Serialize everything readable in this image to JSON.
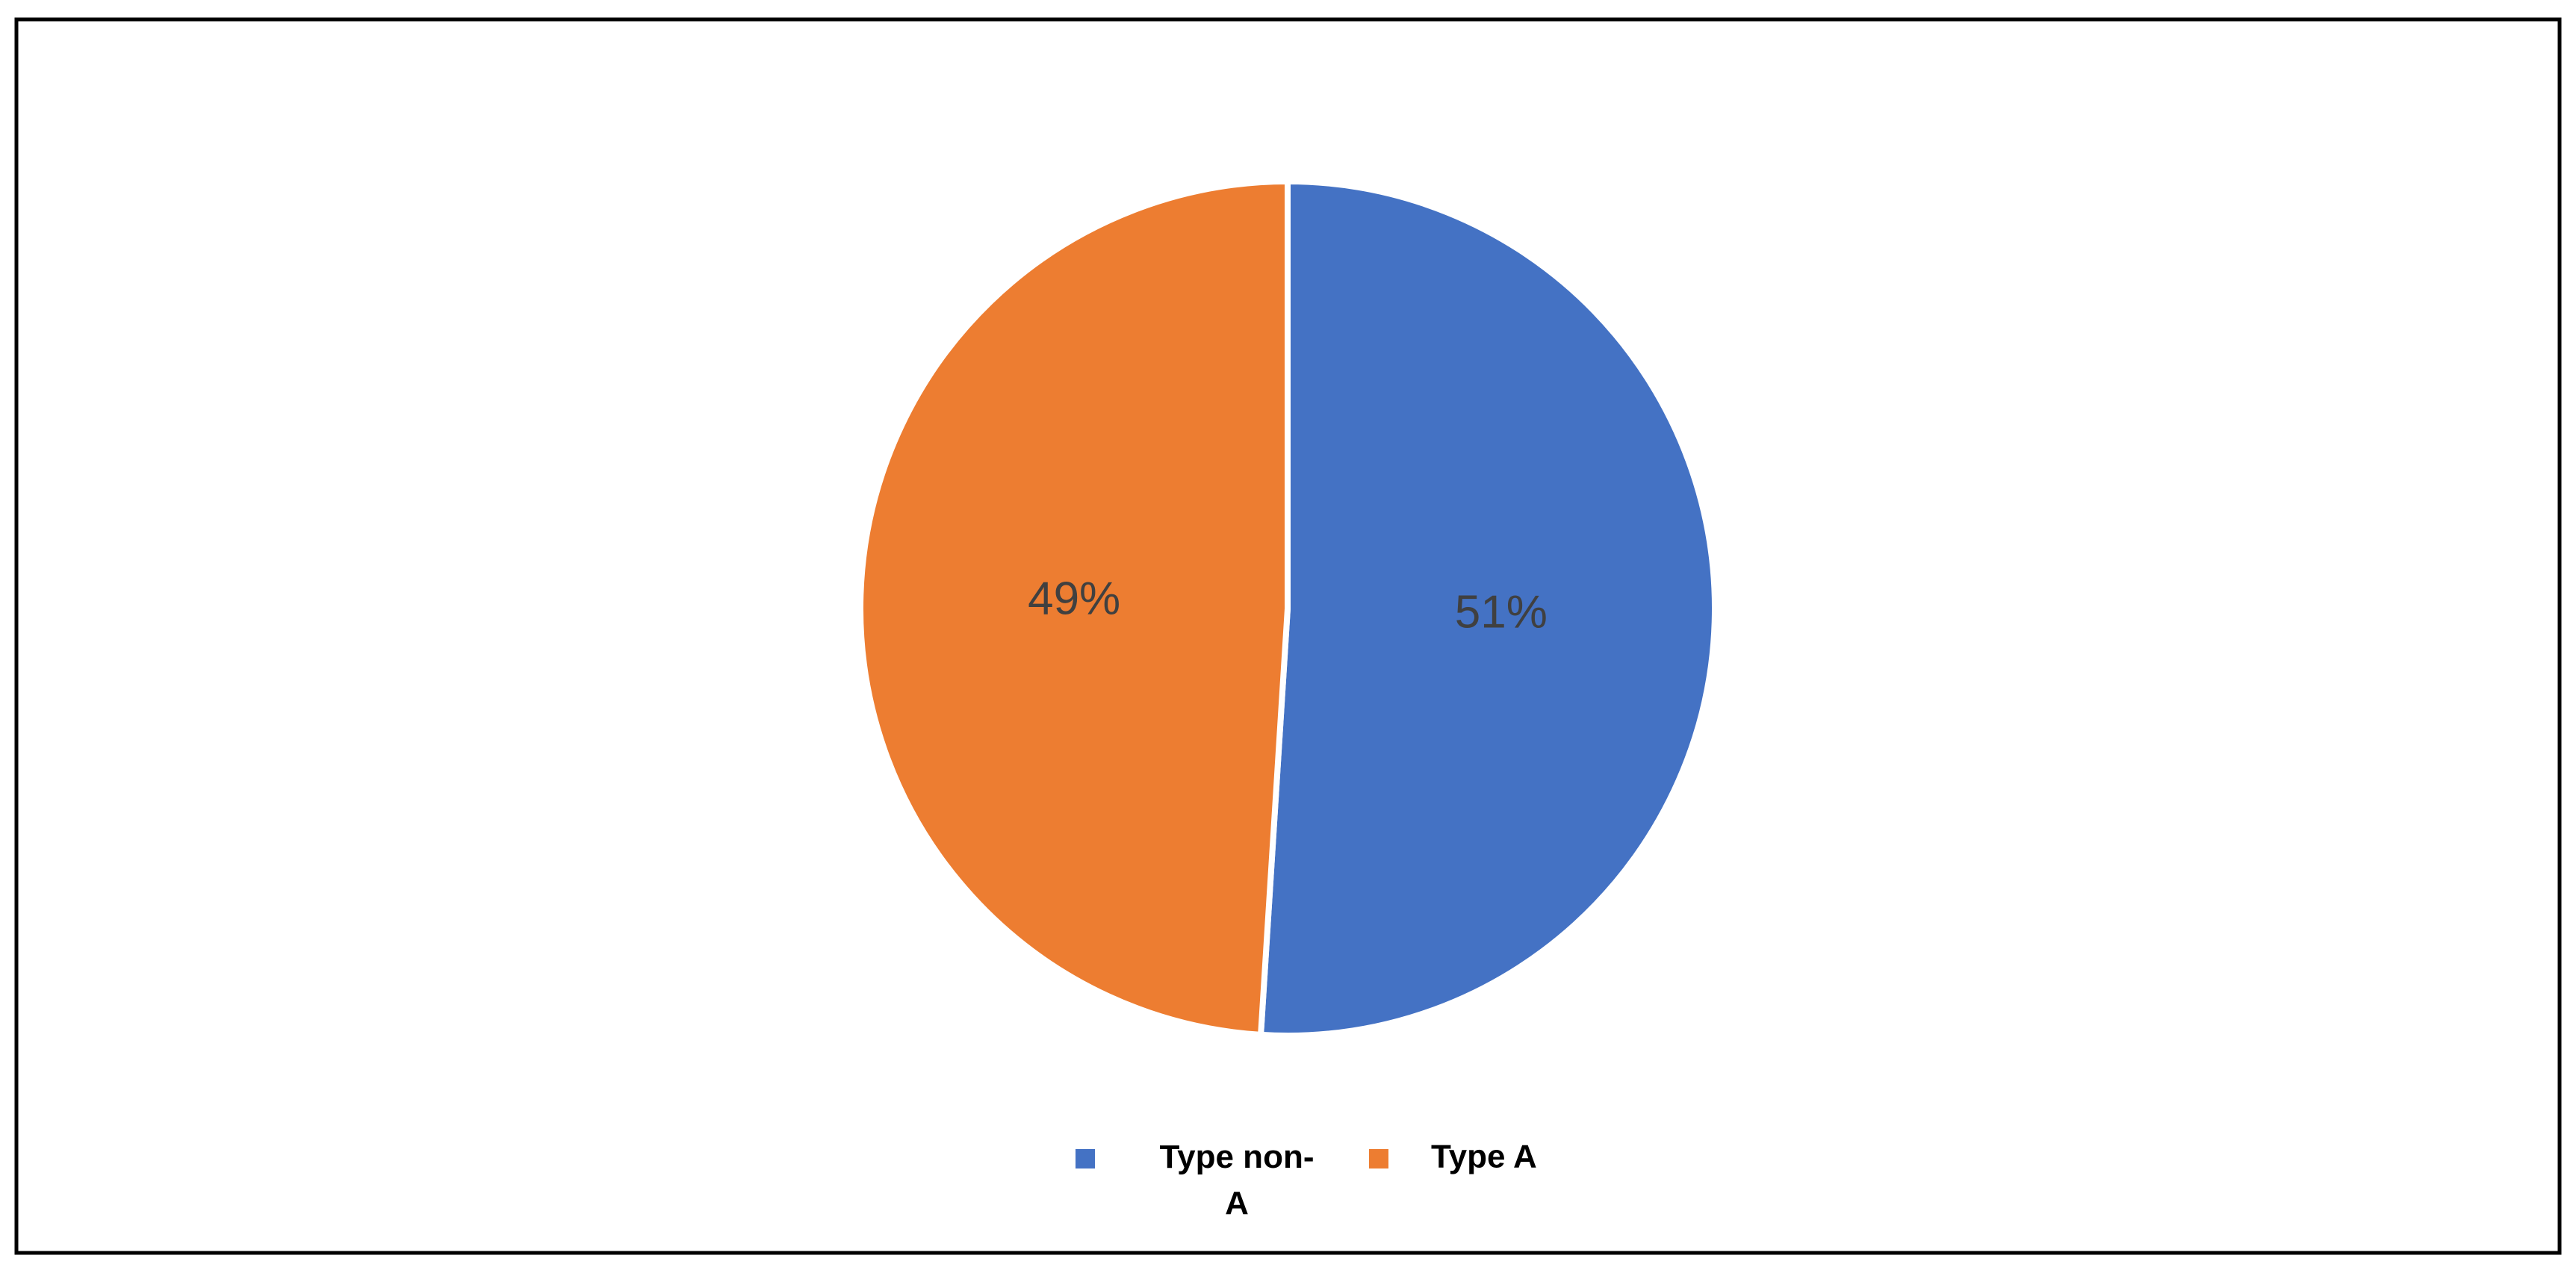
{
  "chart_data": {
    "type": "pie",
    "categories": [
      "Type non-A",
      "Type A"
    ],
    "values": [
      51,
      49
    ],
    "value_labels": [
      "51%",
      "49%"
    ],
    "colors": [
      "#4472c4",
      "#ed7d31"
    ],
    "legend": "bottom"
  }
}
